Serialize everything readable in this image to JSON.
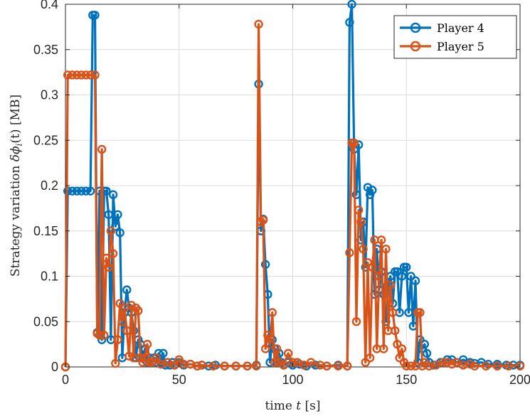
{
  "chart_data": {
    "type": "line",
    "xlabel_prefix": "time ",
    "xlabel_var": "t",
    "xlabel_unit": " [s]",
    "ylabel_prefix": "Strategy variation ",
    "ylabel_var": "δϕ",
    "ylabel_sub": "i",
    "ylabel_arg": "(t)",
    "ylabel_unit": " [MB]",
    "xlim": [
      0,
      200
    ],
    "ylim": [
      0,
      0.4
    ],
    "xticks": [
      "0",
      "50",
      "100",
      "150",
      "200"
    ],
    "yticks": [
      "0",
      "0.05",
      "0.1",
      "0.15",
      "0.2",
      "0.25",
      "0.3",
      "0.35",
      "0.4"
    ],
    "grid": true,
    "legend_position": "top-right",
    "series": [
      {
        "name": "Player 4",
        "color": "#0072BD",
        "points": [
          [
            0,
            0
          ],
          [
            1,
            0.194
          ],
          [
            3,
            0.194
          ],
          [
            5,
            0.194
          ],
          [
            7,
            0.194
          ],
          [
            9,
            0.194
          ],
          [
            11,
            0.194
          ],
          [
            12,
            0.388
          ],
          [
            13,
            0.388
          ],
          [
            14,
            0.038
          ],
          [
            15,
            0.194
          ],
          [
            16,
            0.03
          ],
          [
            17,
            0.194
          ],
          [
            18,
            0.194
          ],
          [
            19,
            0.168
          ],
          [
            20,
            0.03
          ],
          [
            21,
            0.19
          ],
          [
            22,
            0.155
          ],
          [
            23,
            0.168
          ],
          [
            24,
            0.148
          ],
          [
            25,
            0.01
          ],
          [
            26,
            0.06
          ],
          [
            27,
            0.085
          ],
          [
            28,
            0.065
          ],
          [
            29,
            0.06
          ],
          [
            30,
            0.04
          ],
          [
            31,
            0.01
          ],
          [
            32,
            0.03
          ],
          [
            33,
            0.025
          ],
          [
            34,
            0.01
          ],
          [
            35,
            0.02
          ],
          [
            36,
            0.005
          ],
          [
            37,
            0.01
          ],
          [
            38,
            0.005
          ],
          [
            39,
            0.01
          ],
          [
            40,
            0.005
          ],
          [
            41,
            0.015
          ],
          [
            42,
            0.005
          ],
          [
            43,
            0.015
          ],
          [
            44,
            0.002
          ],
          [
            45,
            0.005
          ],
          [
            46,
            0.002
          ],
          [
            47,
            0.005
          ],
          [
            48,
            0.002
          ],
          [
            50,
            0.005
          ],
          [
            52,
            0.002
          ],
          [
            55,
            0.003
          ],
          [
            58,
            0.001
          ],
          [
            60,
            0.002
          ],
          [
            63,
            0.001
          ],
          [
            66,
            0.002
          ],
          [
            70,
            0.001
          ],
          [
            75,
            0.001
          ],
          [
            80,
            0.001
          ],
          [
            84,
            0.002
          ],
          [
            85,
            0.312
          ],
          [
            86,
            0.15
          ],
          [
            87,
            0.163
          ],
          [
            88,
            0.113
          ],
          [
            89,
            0.08
          ],
          [
            90,
            0.005
          ],
          [
            91,
            0.03
          ],
          [
            92,
            0.02
          ],
          [
            93,
            0.005
          ],
          [
            94,
            0.015
          ],
          [
            95,
            0.005
          ],
          [
            96,
            0.002
          ],
          [
            98,
            0.005
          ],
          [
            100,
            0.002
          ],
          [
            103,
            0.003
          ],
          [
            106,
            0.001
          ],
          [
            110,
            0.002
          ],
          [
            115,
            0.001
          ],
          [
            120,
            0.002
          ],
          [
            124,
            0.001
          ],
          [
            125,
            0.38
          ],
          [
            126,
            0.4
          ],
          [
            127,
            0.24
          ],
          [
            128,
            0.19
          ],
          [
            129,
            0.245
          ],
          [
            130,
            0.14
          ],
          [
            131,
            0.16
          ],
          [
            132,
            0.11
          ],
          [
            133,
            0.198
          ],
          [
            134,
            0.19
          ],
          [
            135,
            0.195
          ],
          [
            136,
            0.08
          ],
          [
            137,
            0.13
          ],
          [
            138,
            0.085
          ],
          [
            139,
            0.105
          ],
          [
            140,
            0.08
          ],
          [
            141,
            0.05
          ],
          [
            142,
            0.09
          ],
          [
            143,
            0.1
          ],
          [
            144,
            0.07
          ],
          [
            145,
            0.105
          ],
          [
            146,
            0.105
          ],
          [
            147,
            0.06
          ],
          [
            148,
            0.1
          ],
          [
            149,
            0.11
          ],
          [
            150,
            0.11
          ],
          [
            151,
            0.06
          ],
          [
            152,
            0.1
          ],
          [
            153,
            0.045
          ],
          [
            154,
            0.095
          ],
          [
            155,
            0.005
          ],
          [
            156,
            0.03
          ],
          [
            157,
            0.02
          ],
          [
            158,
            0.025
          ],
          [
            159,
            0.015
          ],
          [
            160,
            0.005
          ],
          [
            162,
            0.002
          ],
          [
            165,
            0.005
          ],
          [
            168,
            0.008
          ],
          [
            170,
            0.008
          ],
          [
            172,
            0.005
          ],
          [
            175,
            0.008
          ],
          [
            178,
            0.005
          ],
          [
            180,
            0.004
          ],
          [
            183,
            0.005
          ],
          [
            186,
            0.003
          ],
          [
            190,
            0.003
          ],
          [
            194,
            0.002
          ],
          [
            197,
            0.002
          ],
          [
            200,
            0.002
          ]
        ]
      },
      {
        "name": "Player 5",
        "color": "#D95319",
        "points": [
          [
            0,
            0
          ],
          [
            1,
            0.322
          ],
          [
            3,
            0.322
          ],
          [
            5,
            0.322
          ],
          [
            7,
            0.322
          ],
          [
            9,
            0.322
          ],
          [
            11,
            0.322
          ],
          [
            13,
            0.322
          ],
          [
            14,
            0.037
          ],
          [
            15,
            0.035
          ],
          [
            16,
            0.24
          ],
          [
            17,
            0.035
          ],
          [
            18,
            0.12
          ],
          [
            19,
            0.11
          ],
          [
            20,
            0.15
          ],
          [
            21,
            0.125
          ],
          [
            22,
            0.004
          ],
          [
            23,
            0.03
          ],
          [
            24,
            0.07
          ],
          [
            25,
            0.05
          ],
          [
            26,
            0.065
          ],
          [
            27,
            0.04
          ],
          [
            28,
            0.012
          ],
          [
            29,
            0.068
          ],
          [
            30,
            0.01
          ],
          [
            31,
            0.065
          ],
          [
            32,
            0.062
          ],
          [
            33,
            0.01
          ],
          [
            34,
            0.005
          ],
          [
            35,
            0.01
          ],
          [
            36,
            0.025
          ],
          [
            37,
            0.005
          ],
          [
            38,
            0.005
          ],
          [
            40,
            0.01
          ],
          [
            42,
            0.003
          ],
          [
            45,
            0.005
          ],
          [
            48,
            0.002
          ],
          [
            50,
            0.008
          ],
          [
            52,
            0.003
          ],
          [
            55,
            0.003
          ],
          [
            58,
            0.001
          ],
          [
            60,
            0.002
          ],
          [
            65,
            0.001
          ],
          [
            70,
            0.001
          ],
          [
            75,
            0.001
          ],
          [
            80,
            0.001
          ],
          [
            84,
            0.001
          ],
          [
            85,
            0.378
          ],
          [
            86,
            0.16
          ],
          [
            87,
            0.162
          ],
          [
            88,
            0.02
          ],
          [
            89,
            0.035
          ],
          [
            90,
            0.025
          ],
          [
            91,
            0.06
          ],
          [
            92,
            0.005
          ],
          [
            93,
            0.02
          ],
          [
            94,
            0.005
          ],
          [
            96,
            0.002
          ],
          [
            98,
            0.015
          ],
          [
            100,
            0.005
          ],
          [
            102,
            0.005
          ],
          [
            105,
            0.002
          ],
          [
            108,
            0.005
          ],
          [
            112,
            0.002
          ],
          [
            115,
            0.001
          ],
          [
            120,
            0.001
          ],
          [
            124,
            0.001
          ],
          [
            125,
            0.126
          ],
          [
            126,
            0.247
          ],
          [
            127,
            0.247
          ],
          [
            128,
            0.05
          ],
          [
            129,
            0.173
          ],
          [
            130,
            0.16
          ],
          [
            131,
            0.13
          ],
          [
            132,
            0.005
          ],
          [
            133,
            0.115
          ],
          [
            134,
            0.01
          ],
          [
            135,
            0.11
          ],
          [
            136,
            0.14
          ],
          [
            137,
            0.02
          ],
          [
            138,
            0.1
          ],
          [
            139,
            0.14
          ],
          [
            140,
            0.02
          ],
          [
            141,
            0.13
          ],
          [
            142,
            0.04
          ],
          [
            143,
            0.09
          ],
          [
            144,
            0.06
          ],
          [
            145,
            0.04
          ],
          [
            146,
            0.025
          ],
          [
            147,
            0.01
          ],
          [
            148,
            0.02
          ],
          [
            149,
            0.005
          ],
          [
            150,
            0.001
          ],
          [
            152,
            0.001
          ],
          [
            154,
            0.001
          ],
          [
            155,
            0.06
          ],
          [
            156,
            0.06
          ],
          [
            157,
            0.001
          ],
          [
            158,
            0.005
          ],
          [
            160,
            0.001
          ],
          [
            163,
            0.002
          ],
          [
            166,
            0.005
          ],
          [
            168,
            0.005
          ],
          [
            170,
            0.003
          ],
          [
            172,
            0.005
          ],
          [
            175,
            0.002
          ],
          [
            178,
            0.003
          ],
          [
            180,
            0.001
          ],
          [
            185,
            0.001
          ],
          [
            190,
            0.001
          ],
          [
            195,
            0.001
          ],
          [
            200,
            0.001
          ]
        ]
      }
    ]
  }
}
